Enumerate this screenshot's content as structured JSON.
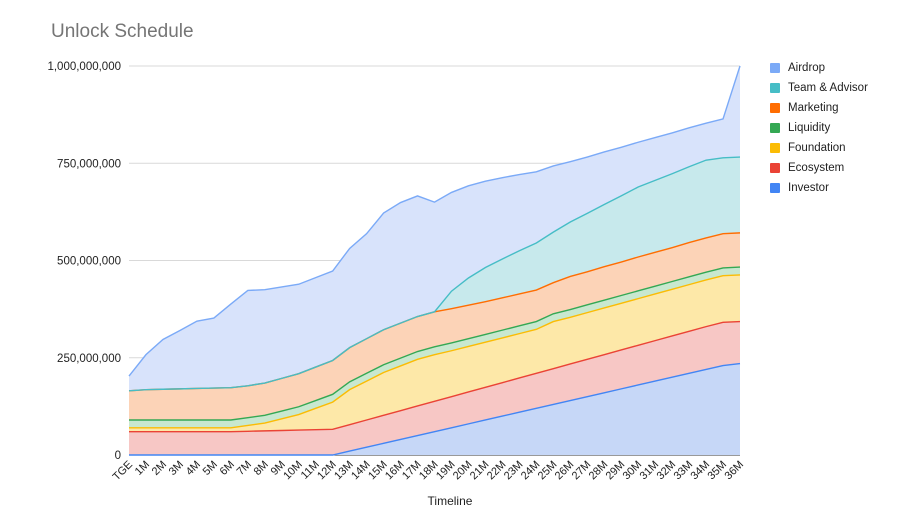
{
  "chart_data": {
    "type": "area",
    "stacked": true,
    "title": "Unlock Schedule",
    "xlabel": "Timeline",
    "ylabel": "",
    "ylim": [
      0,
      1000000000
    ],
    "yticks": [
      0,
      250000000,
      500000000,
      750000000,
      1000000000
    ],
    "ytick_labels": [
      "0",
      "250,000,000",
      "500,000,000",
      "750,000,000",
      "1,000,000,000"
    ],
    "grid": true,
    "legend_position": "right",
    "categories": [
      "TGE",
      "1M",
      "2M",
      "3M",
      "4M",
      "5M",
      "6M",
      "7M",
      "8M",
      "9M",
      "10M",
      "11M",
      "12M",
      "13M",
      "14M",
      "15M",
      "16M",
      "17M",
      "18M",
      "19M",
      "20M",
      "21M",
      "22M",
      "23M",
      "24M",
      "25M",
      "26M",
      "27M",
      "28M",
      "29M",
      "30M",
      "31M",
      "32M",
      "33M",
      "34M",
      "35M",
      "36M"
    ],
    "series": [
      {
        "name": "Investor",
        "color": "#4285f4",
        "fill": "#c6d7f7",
        "values": [
          0,
          0,
          0,
          0,
          0,
          0,
          0,
          0,
          0,
          0,
          0,
          0,
          0,
          10000000,
          20000000,
          30000000,
          40000000,
          50000000,
          60000000,
          70000000,
          80000000,
          90000000,
          100000000,
          110000000,
          120000000,
          130000000,
          140000000,
          150000000,
          160000000,
          170000000,
          180000000,
          190000000,
          200000000,
          210000000,
          220000000,
          230000000,
          235000000
        ]
      },
      {
        "name": "Ecosystem",
        "color": "#ea4335",
        "fill": "#f7c7c5",
        "values": [
          60000000,
          60000000,
          60000000,
          60000000,
          60000000,
          60000000,
          60000000,
          61000000,
          62000000,
          63000000,
          64000000,
          65000000,
          66000000,
          68000000,
          70000000,
          72000000,
          74000000,
          76000000,
          78000000,
          80000000,
          82000000,
          84000000,
          86000000,
          88000000,
          90000000,
          92000000,
          94000000,
          96000000,
          98000000,
          100000000,
          102000000,
          104000000,
          106000000,
          108000000,
          110000000,
          111000000,
          108000000
        ]
      },
      {
        "name": "Foundation",
        "color": "#fbbc04",
        "fill": "#fde8a8",
        "values": [
          10000000,
          10000000,
          10000000,
          10000000,
          10000000,
          10000000,
          10000000,
          15000000,
          20000000,
          30000000,
          40000000,
          55000000,
          70000000,
          90000000,
          100000000,
          110000000,
          115000000,
          120000000,
          120000000,
          118000000,
          117000000,
          116000000,
          115000000,
          114000000,
          113000000,
          121000000,
          120000000,
          120000000,
          120000000,
          120000000,
          120000000,
          120000000,
          120000000,
          120000000,
          120000000,
          120000000,
          120000000
        ]
      },
      {
        "name": "Liquidity",
        "color": "#34a853",
        "fill": "#c8e8cf",
        "values": [
          20000000,
          20000000,
          20000000,
          20000000,
          20000000,
          20000000,
          20000000,
          20000000,
          20000000,
          20000000,
          20000000,
          20000000,
          20000000,
          20000000,
          20000000,
          20000000,
          20000000,
          20000000,
          20000000,
          20000000,
          20000000,
          20000000,
          20000000,
          20000000,
          20000000,
          20000000,
          20000000,
          20000000,
          20000000,
          20000000,
          20000000,
          20000000,
          20000000,
          20000000,
          20000000,
          20000000,
          20000000
        ]
      },
      {
        "name": "Marketing",
        "color": "#ff6d01",
        "fill": "#fcd3b7",
        "values": [
          75000000,
          78000000,
          79000000,
          80000000,
          81000000,
          82000000,
          83000000,
          82000000,
          83000000,
          84000000,
          85000000,
          86000000,
          87000000,
          88000000,
          89000000,
          90000000,
          90000000,
          90000000,
          90000000,
          88000000,
          86000000,
          84000000,
          83000000,
          82000000,
          81000000,
          80000000,
          85000000,
          85000000,
          86000000,
          86000000,
          87000000,
          87000000,
          87000000,
          88000000,
          88000000,
          88000000,
          88000000
        ]
      },
      {
        "name": "Team & Advisor",
        "color": "#46bdc6",
        "fill": "#c7e9ec",
        "values": [
          0,
          0,
          0,
          0,
          0,
          0,
          0,
          0,
          0,
          0,
          0,
          0,
          0,
          0,
          0,
          0,
          0,
          0,
          0,
          45000000,
          70000000,
          88000000,
          100000000,
          111000000,
          121000000,
          130000000,
          140000000,
          150000000,
          160000000,
          170000000,
          180000000,
          185000000,
          190000000,
          195000000,
          200000000,
          195000000,
          195000000
        ]
      },
      {
        "name": "Airdrop",
        "color": "#7baaf7",
        "fill": "#d8e3fb",
        "values": [
          38000000,
          90000000,
          128000000,
          150000000,
          173000000,
          180000000,
          215000000,
          245000000,
          240000000,
          235000000,
          230000000,
          230000000,
          230000000,
          255000000,
          270000000,
          300000000,
          310000000,
          310000000,
          282000000,
          254000000,
          237000000,
          222000000,
          209000000,
          196000000,
          183000000,
          170000000,
          155000000,
          145000000,
          135000000,
          125000000,
          115000000,
          110000000,
          105000000,
          100000000,
          95000000,
          100000000,
          234000000
        ]
      }
    ]
  }
}
